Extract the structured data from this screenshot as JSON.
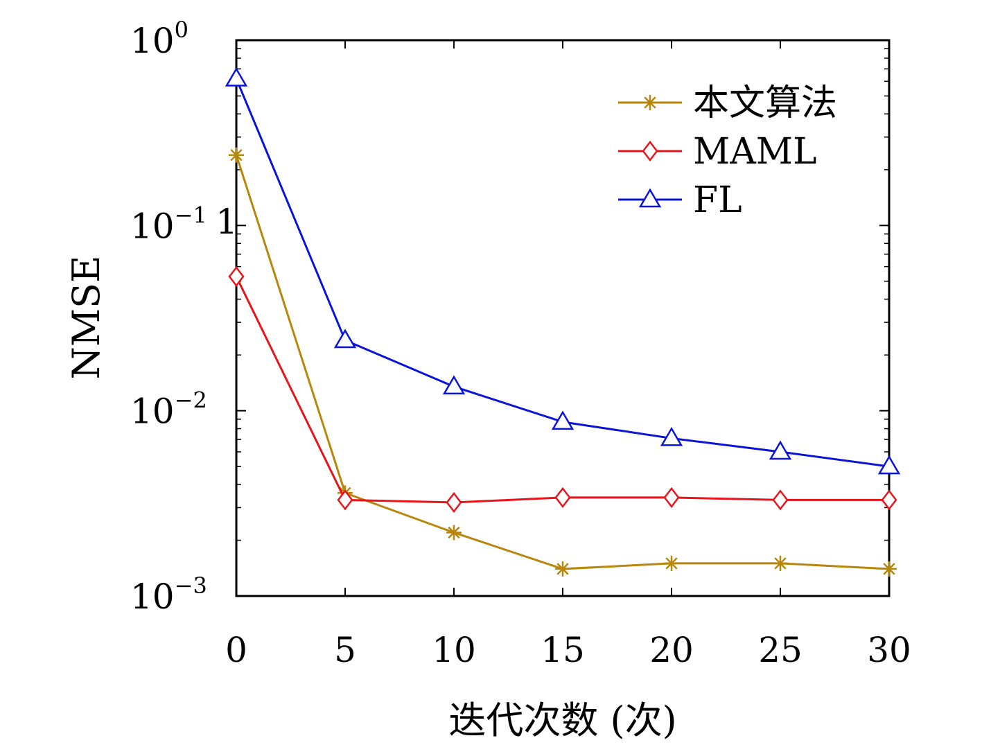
{
  "chart_data": {
    "type": "line",
    "title": "",
    "xlabel": "迭代次数 (次)",
    "ylabel": "NMSE",
    "x": [
      0,
      5,
      10,
      15,
      20,
      25,
      30
    ],
    "xlim": [
      0,
      30
    ],
    "ylim": [
      0.001,
      1
    ],
    "yscale": "log",
    "x_ticks": [
      "0",
      "5",
      "10",
      "15",
      "20",
      "25",
      "30"
    ],
    "y_ticks": [
      {
        "base": "10",
        "exp": "0",
        "value": 1
      },
      {
        "base": "10",
        "exp": "−1",
        "value": 0.1
      },
      {
        "base": "10",
        "exp": "−2",
        "value": 0.01
      },
      {
        "base": "10",
        "exp": "−3",
        "value": 0.001
      }
    ],
    "stray_label": "1",
    "grid": false,
    "legend_position": "top-right",
    "series": [
      {
        "name": "本文算法",
        "color": "#b8860b",
        "marker": "asterisk",
        "values": [
          0.24,
          0.0036,
          0.0022,
          0.0014,
          0.0015,
          0.0015,
          0.0014
        ]
      },
      {
        "name": "MAML",
        "color": "#e8141c",
        "marker": "diamond",
        "values": [
          0.053,
          0.0033,
          0.0032,
          0.0034,
          0.0034,
          0.0033,
          0.0033
        ]
      },
      {
        "name": "FL",
        "color": "#0a14d8",
        "marker": "triangle",
        "values": [
          0.62,
          0.024,
          0.0135,
          0.0087,
          0.0071,
          0.006,
          0.005
        ]
      }
    ]
  }
}
